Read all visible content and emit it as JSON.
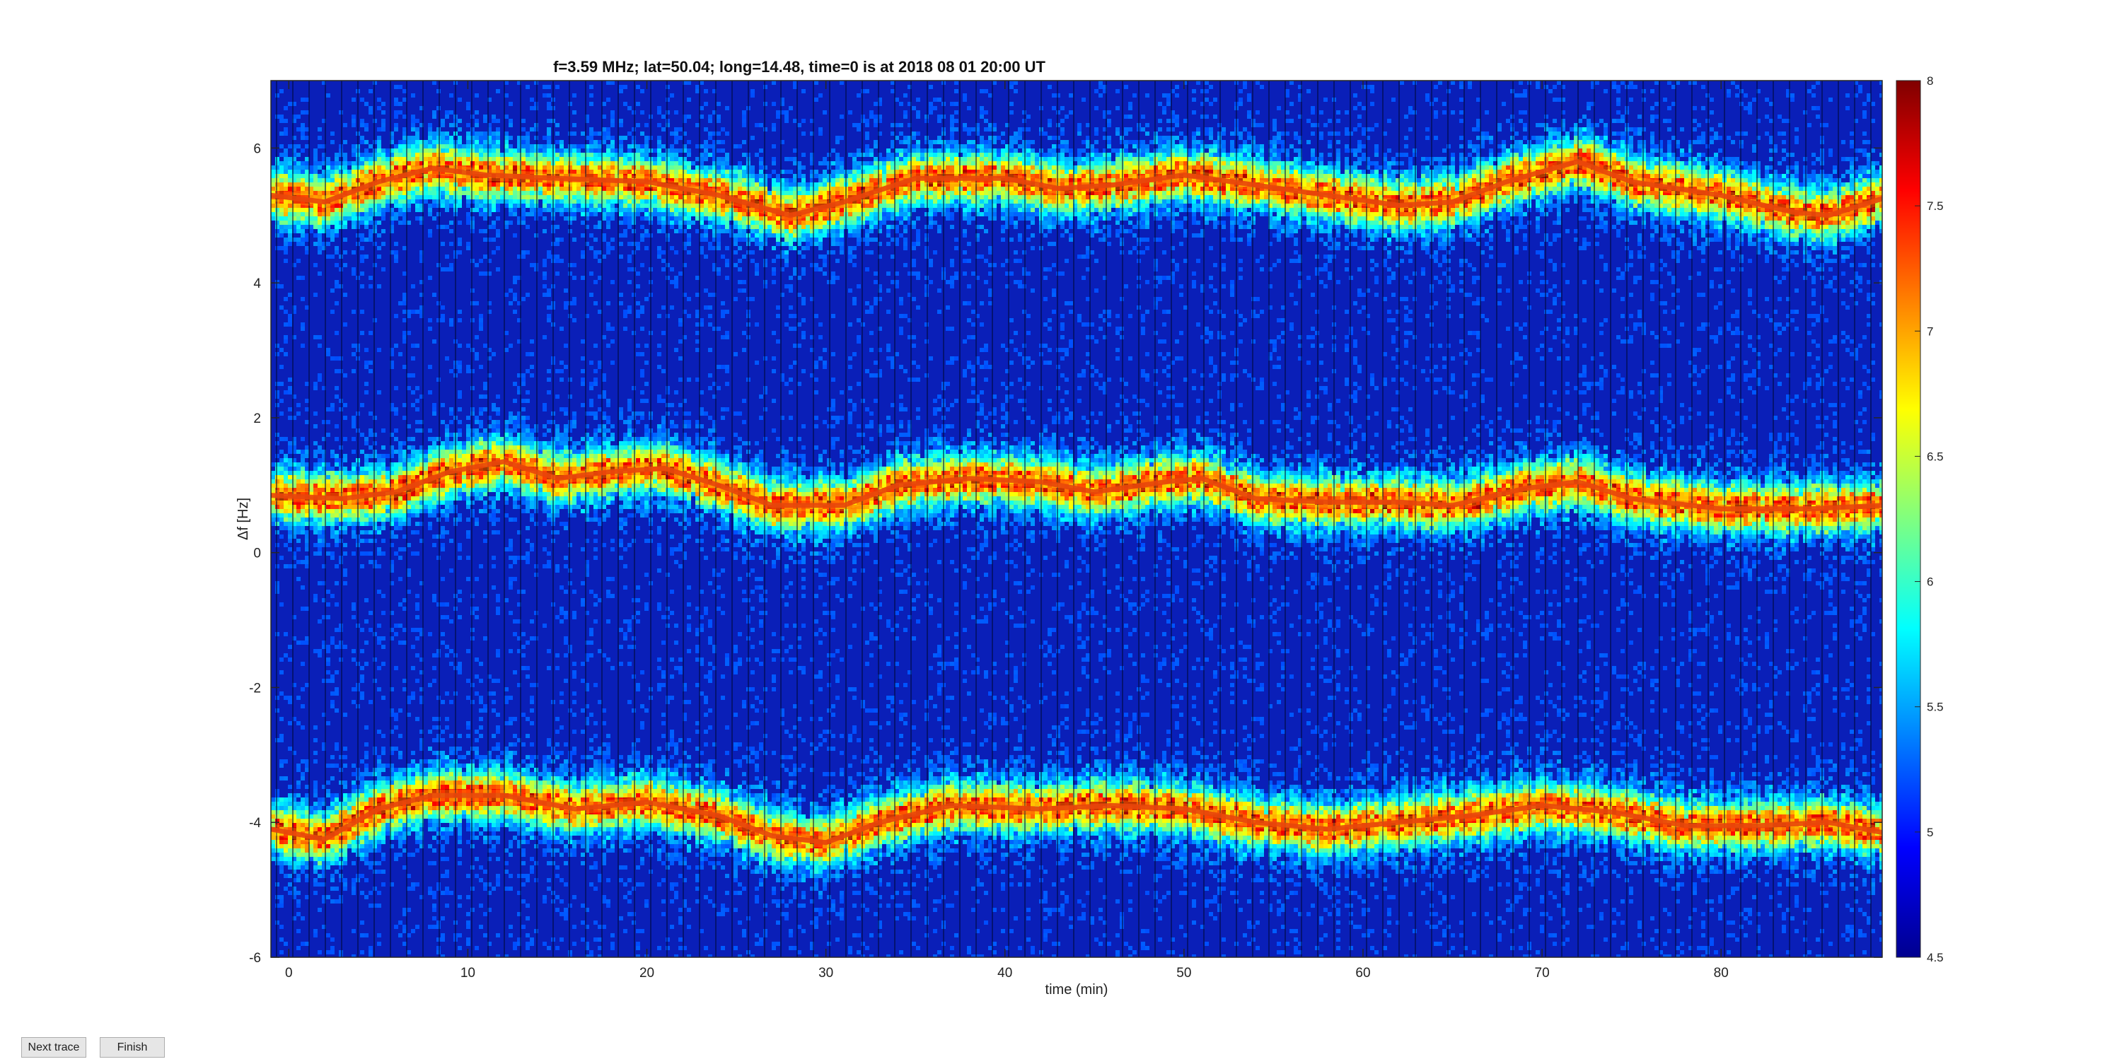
{
  "buttons": {
    "next_label": "Next trace",
    "finish_label": "Finish"
  },
  "chart_data": {
    "type": "heatmap",
    "title": "f=3.59 MHz;  lat=50.04; long=14.48, time=0 is at 2018 08 01 20:00 UT",
    "xlabel": "time (min)",
    "ylabel": "Δf [Hz]",
    "xlim": [
      -1,
      89
    ],
    "ylim": [
      -6,
      7
    ],
    "xticks": [
      0,
      10,
      20,
      30,
      40,
      50,
      60,
      70,
      80
    ],
    "yticks": [
      -6,
      -4,
      -2,
      0,
      2,
      4,
      6
    ],
    "colorbar": {
      "clim": [
        4.5,
        8
      ],
      "ticks": [
        4.5,
        5,
        5.5,
        6,
        6.5,
        7,
        7.5,
        8
      ],
      "colormap": "jet"
    },
    "grid": false,
    "traces": [
      {
        "points": [
          [
            -1,
            5.3
          ],
          [
            2,
            5.2
          ],
          [
            5,
            5.5
          ],
          [
            8,
            5.7
          ],
          [
            11,
            5.6
          ],
          [
            15,
            5.55
          ],
          [
            20,
            5.5
          ],
          [
            24,
            5.3
          ],
          [
            28,
            5.0
          ],
          [
            31,
            5.2
          ],
          [
            35,
            5.55
          ],
          [
            40,
            5.55
          ],
          [
            43,
            5.4
          ],
          [
            46,
            5.45
          ],
          [
            50,
            5.6
          ],
          [
            54,
            5.45
          ],
          [
            58,
            5.3
          ],
          [
            62,
            5.15
          ],
          [
            65,
            5.2
          ],
          [
            68,
            5.5
          ],
          [
            72,
            5.8
          ],
          [
            75,
            5.5
          ],
          [
            80,
            5.3
          ],
          [
            84,
            5.05
          ],
          [
            86,
            5.0
          ],
          [
            89,
            5.25
          ]
        ]
      },
      {
        "points": [
          [
            -1,
            0.85
          ],
          [
            3,
            0.8
          ],
          [
            6,
            0.9
          ],
          [
            9,
            1.2
          ],
          [
            12,
            1.35
          ],
          [
            15,
            1.1
          ],
          [
            18,
            1.2
          ],
          [
            21,
            1.25
          ],
          [
            24,
            1.0
          ],
          [
            27,
            0.7
          ],
          [
            31,
            0.7
          ],
          [
            34,
            1.0
          ],
          [
            38,
            1.1
          ],
          [
            42,
            1.05
          ],
          [
            45,
            0.9
          ],
          [
            49,
            1.05
          ],
          [
            51,
            1.1
          ],
          [
            54,
            0.8
          ],
          [
            58,
            0.75
          ],
          [
            62,
            0.75
          ],
          [
            65,
            0.7
          ],
          [
            69,
            0.95
          ],
          [
            72,
            1.05
          ],
          [
            75,
            0.8
          ],
          [
            80,
            0.65
          ],
          [
            85,
            0.65
          ],
          [
            89,
            0.7
          ]
        ]
      },
      {
        "points": [
          [
            -1,
            -4.1
          ],
          [
            2,
            -4.25
          ],
          [
            5,
            -3.8
          ],
          [
            8,
            -3.6
          ],
          [
            12,
            -3.6
          ],
          [
            16,
            -3.8
          ],
          [
            20,
            -3.7
          ],
          [
            24,
            -3.9
          ],
          [
            27,
            -4.2
          ],
          [
            30,
            -4.3
          ],
          [
            33,
            -4.0
          ],
          [
            37,
            -3.75
          ],
          [
            42,
            -3.8
          ],
          [
            46,
            -3.75
          ],
          [
            50,
            -3.8
          ],
          [
            54,
            -4.0
          ],
          [
            58,
            -4.1
          ],
          [
            62,
            -4.0
          ],
          [
            66,
            -3.9
          ],
          [
            70,
            -3.75
          ],
          [
            74,
            -3.85
          ],
          [
            78,
            -4.05
          ],
          [
            82,
            -4.05
          ],
          [
            86,
            -4.0
          ],
          [
            89,
            -4.15
          ]
        ]
      }
    ]
  }
}
